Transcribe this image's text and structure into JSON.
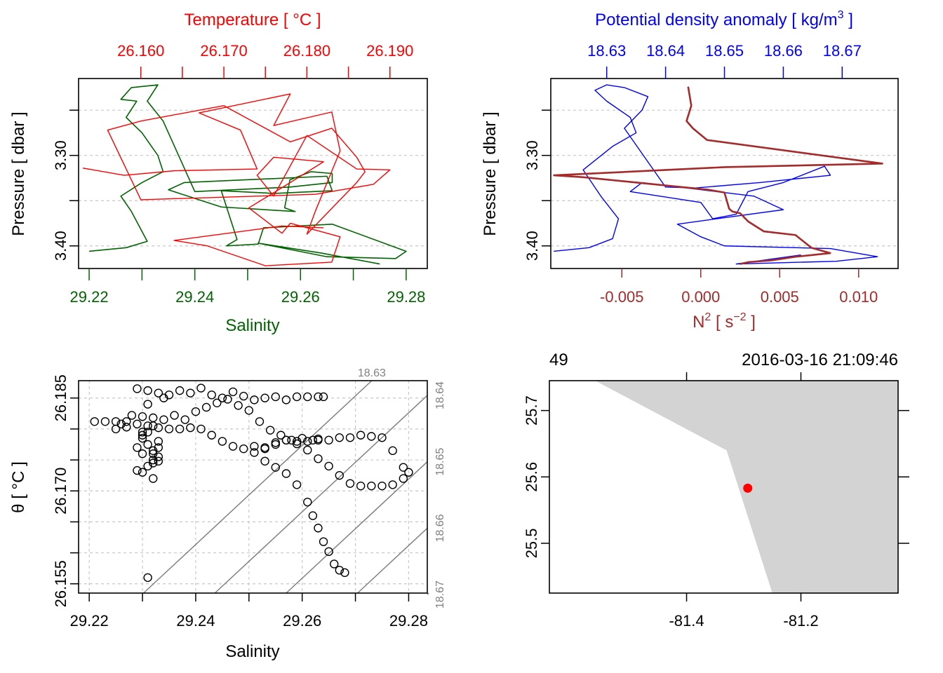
{
  "colors": {
    "salinity": "#006400",
    "temperature": "#ff0000",
    "density": "#0000ff",
    "n2": "#a52a2a",
    "grid": "#c8c8c8",
    "isopycnal": "#808080",
    "land": "#d3d3d3",
    "station": "#ff0000"
  },
  "chart_data": [
    {
      "type": "line",
      "panel": "profile-ts",
      "top_title": "Temperature [ °C ]",
      "xlabel": "Salinity",
      "ylabel": "Pressure [ dbar ]",
      "ylim": [
        3.425,
        3.215
      ],
      "salinity_xlim": [
        29.218,
        29.284
      ],
      "temperature_xlim": [
        26.1525,
        26.1945
      ],
      "salinity_ticks": [
        "29.22",
        "29.24",
        "29.26",
        "29.28"
      ],
      "temperature_ticks": [
        "26.160",
        "26.170",
        "26.180",
        "26.190"
      ],
      "pressure_ticks": [
        "3.30",
        "3.40"
      ],
      "series": [
        {
          "name": "Salinity",
          "x": [
            29.22,
            29.227,
            29.231,
            29.23,
            29.228,
            29.226,
            29.23,
            29.234,
            29.233,
            29.23,
            29.227,
            29.229,
            29.226,
            29.228,
            29.233,
            29.231,
            29.234,
            29.24,
            29.258,
            29.266,
            29.266,
            29.262,
            29.258,
            29.257,
            29.259,
            29.245,
            29.235,
            29.238,
            29.265,
            29.266,
            29.255,
            29.245,
            29.248,
            29.246,
            29.252,
            29.253,
            29.266,
            29.28,
            29.278,
            29.265,
            29.252,
            29.264,
            29.275
          ],
          "y": [
            3.406,
            3.402,
            3.395,
            3.384,
            3.362,
            3.345,
            3.33,
            3.318,
            3.3,
            3.275,
            3.258,
            3.24,
            3.238,
            3.225,
            3.222,
            3.24,
            3.262,
            3.34,
            3.335,
            3.33,
            3.32,
            3.318,
            3.327,
            3.358,
            3.362,
            3.357,
            3.338,
            3.33,
            3.323,
            3.339,
            3.342,
            3.339,
            3.393,
            3.4,
            3.398,
            3.38,
            3.376,
            3.406,
            3.414,
            3.412,
            3.397,
            3.408,
            3.42
          ]
        },
        {
          "name": "Temperature",
          "x": [
            26.153,
            26.158,
            26.164,
            26.174,
            26.172,
            26.167,
            26.178,
            26.176,
            26.183,
            26.184,
            26.181,
            26.18,
            26.186,
            26.187,
            26.186,
            26.183,
            26.178,
            26.17,
            26.16,
            26.156,
            26.16,
            26.181,
            26.188,
            26.19,
            26.186,
            26.18,
            26.176,
            26.174,
            26.176,
            26.182,
            26.178,
            26.173,
            26.177,
            26.178,
            26.184,
            26.183,
            26.175,
            26.168,
            26.164,
            26.177,
            26.182
          ],
          "y": [
            3.314,
            3.322,
            3.317,
            3.315,
            3.272,
            3.253,
            3.232,
            3.267,
            3.252,
            3.295,
            3.362,
            3.387,
            3.33,
            3.318,
            3.302,
            3.27,
            3.285,
            3.245,
            3.262,
            3.272,
            3.349,
            3.343,
            3.332,
            3.316,
            3.315,
            3.278,
            3.345,
            3.322,
            3.302,
            3.307,
            3.33,
            3.358,
            3.386,
            3.375,
            3.39,
            3.418,
            3.422,
            3.4,
            3.394,
            3.378,
            3.38
          ]
        }
      ]
    },
    {
      "type": "line",
      "panel": "profile-density-n2",
      "top_title": "Potential density anomaly [ kg/m",
      "top_title_sup": "3",
      "top_title_end": " ]",
      "xlabel": "N",
      "xlabel_sup": "2",
      "xlabel_unit": " [ s",
      "xlabel_unit_sup": "−2",
      "xlabel_end": " ]",
      "ylabel": "Pressure [ dbar ]",
      "ylim": [
        3.425,
        3.215
      ],
      "density_xlim": [
        18.6205,
        18.6795
      ],
      "n2_xlim": [
        -0.0095,
        0.0125
      ],
      "density_ticks": [
        "18.63",
        "18.64",
        "18.65",
        "18.66",
        "18.67"
      ],
      "n2_ticks": [
        "-0.005",
        "0.000",
        "0.005",
        "0.010"
      ],
      "pressure_ticks": [
        "3.30",
        "3.40"
      ],
      "series": [
        {
          "name": "Potential density anomaly",
          "x": [
            18.621,
            18.627,
            18.631,
            18.632,
            18.629,
            18.626,
            18.631,
            18.635,
            18.634,
            18.63,
            18.628,
            18.63,
            18.633,
            18.637,
            18.636,
            18.633,
            18.64,
            18.645,
            18.656,
            18.668,
            18.667,
            18.66,
            18.654,
            18.652,
            18.648,
            18.646,
            18.634,
            18.636,
            18.655,
            18.66,
            18.642,
            18.646,
            18.65,
            18.668,
            18.676,
            18.669,
            18.652,
            18.663
          ],
          "y": [
            3.406,
            3.402,
            3.392,
            3.37,
            3.345,
            3.316,
            3.29,
            3.275,
            3.258,
            3.24,
            3.228,
            3.222,
            3.225,
            3.235,
            3.25,
            3.27,
            3.335,
            3.336,
            3.33,
            3.322,
            3.312,
            3.33,
            3.34,
            3.365,
            3.37,
            3.352,
            3.34,
            3.33,
            3.345,
            3.36,
            3.376,
            3.39,
            3.4,
            3.403,
            3.412,
            3.417,
            3.42,
            3.41
          ]
        },
        {
          "name": "N2",
          "x": [
            -0.0008,
            -0.0006,
            -0.0009,
            -0.0005,
            0.0004,
            0.0115,
            0.0015,
            -0.0093,
            -0.0075,
            0.0005,
            0.0015,
            0.0018,
            0.002,
            0.0025,
            0.003,
            0.004,
            0.006,
            0.0065,
            0.007,
            0.0082,
            0.006,
            0.0045,
            0.003,
            0.0025
          ],
          "y": [
            3.224,
            3.245,
            3.262,
            3.27,
            3.283,
            3.309,
            3.313,
            3.322,
            3.324,
            3.338,
            3.341,
            3.359,
            3.362,
            3.364,
            3.373,
            3.384,
            3.388,
            3.395,
            3.402,
            3.408,
            3.412,
            3.416,
            3.418,
            3.42
          ]
        }
      ]
    },
    {
      "type": "scatter",
      "panel": "ts-diagram",
      "xlabel": "Salinity",
      "ylabel": "θ [ °C ]",
      "xlim": [
        29.218,
        29.2835
      ],
      "ylim": [
        26.1535,
        26.1878
      ],
      "x_ticks": [
        "29.22",
        "29.24",
        "29.26",
        "29.28"
      ],
      "y_ticks": [
        "26.155",
        "26.170",
        "26.185"
      ],
      "isopycnal_labels": [
        "18.63",
        "18.64",
        "18.65",
        "18.66",
        "18.67"
      ],
      "isopycnal_salinity_bottom": [
        29.2302,
        29.2436,
        29.257,
        29.2704,
        29.2838
      ],
      "isopycnal_slope_dT_dS": 0.8,
      "points_x": [
        29.229,
        29.231,
        29.233,
        29.235,
        29.237,
        29.239,
        29.241,
        29.243,
        29.245,
        29.247,
        29.249,
        29.251,
        29.253,
        29.255,
        29.257,
        29.259,
        29.261,
        29.263,
        29.264,
        29.23,
        29.232,
        29.234,
        29.236,
        29.238,
        29.24,
        29.242,
        29.244,
        29.246,
        29.248,
        29.25,
        29.252,
        29.254,
        29.256,
        29.258,
        29.26,
        29.262,
        29.263,
        29.221,
        29.223,
        29.225,
        29.227,
        29.229,
        29.231,
        29.233,
        29.235,
        29.237,
        29.239,
        29.241,
        29.243,
        29.245,
        29.247,
        29.249,
        29.251,
        29.253,
        29.255,
        29.257,
        29.259,
        29.261,
        29.263,
        29.265,
        29.267,
        29.269,
        29.271,
        29.273,
        29.275,
        29.277,
        29.279,
        29.28,
        29.279,
        29.277,
        29.275,
        29.273,
        29.271,
        29.269,
        29.267,
        29.265,
        29.263,
        29.261,
        29.259,
        29.257,
        29.255,
        29.253,
        29.251,
        29.253,
        29.255,
        29.257,
        29.259,
        29.261,
        29.262,
        29.263,
        29.264,
        29.265,
        29.266,
        29.267,
        29.268,
        29.231,
        29.232,
        29.233,
        29.232,
        29.231,
        29.23,
        29.231,
        29.232,
        29.233,
        29.231,
        29.23,
        29.232,
        29.229,
        29.233,
        29.23,
        29.232,
        29.228,
        29.226,
        29.227,
        29.225,
        29.23,
        29.234,
        29.231,
        29.233,
        29.229,
        29.232,
        29.23
      ],
      "points_y": [
        26.1865,
        26.1862,
        26.1858,
        26.1855,
        26.1862,
        26.1858,
        26.1866,
        26.1855,
        26.185,
        26.186,
        26.1853,
        26.1847,
        26.185,
        26.1852,
        26.1847,
        26.1852,
        26.1852,
        26.1852,
        26.1852,
        26.182,
        26.1818,
        26.1815,
        26.1822,
        26.1815,
        26.1828,
        26.1835,
        26.1842,
        26.1848,
        26.1838,
        26.183,
        26.1812,
        26.1798,
        26.179,
        26.1782,
        26.1785,
        26.1782,
        26.1784,
        26.1812,
        26.1812,
        26.1812,
        26.1812,
        26.1808,
        26.1805,
        26.1802,
        26.18,
        26.18,
        26.1802,
        26.18,
        26.179,
        26.178,
        26.1772,
        26.1768,
        26.1772,
        26.177,
        26.1775,
        26.1782,
        26.178,
        26.178,
        26.1782,
        26.1782,
        26.1786,
        26.1786,
        26.179,
        26.1788,
        26.1786,
        26.1765,
        26.1738,
        26.173,
        26.172,
        26.171,
        26.1708,
        26.1708,
        26.1708,
        26.1712,
        26.1725,
        26.174,
        26.1752,
        26.1766,
        26.1776,
        26.1782,
        26.1778,
        26.1768,
        26.1762,
        26.1748,
        26.1738,
        26.1728,
        26.171,
        26.1682,
        26.166,
        26.164,
        26.1618,
        26.1602,
        26.1582,
        26.1572,
        26.1568,
        26.156,
        26.1745,
        26.1755,
        26.1765,
        26.1775,
        26.1785,
        26.1795,
        26.176,
        26.1748,
        26.174,
        26.173,
        26.172,
        26.1733,
        26.177,
        26.179,
        26.1805,
        26.1822,
        26.1808,
        26.1803,
        26.18,
        26.1795,
        26.185,
        26.184,
        26.178,
        26.177,
        26.175,
        26.176,
        26.1735
      ]
    },
    {
      "type": "scatter",
      "panel": "station-map",
      "top_left_label": "49",
      "top_right_label": "2016-03-16 21:09:46",
      "xlim": [
        -81.64,
        -81.03
      ],
      "ylim": [
        25.425,
        25.745
      ],
      "x_ticks": [
        "-81.4",
        "-81.2"
      ],
      "y_ticks": [
        "25.5",
        "25.6",
        "25.7"
      ],
      "coastline_lon": [
        -81.56,
        -81.33,
        -81.25,
        -81.03,
        -81.03
      ],
      "coastline_lat": [
        25.745,
        25.64,
        25.425,
        25.425,
        25.745
      ],
      "station_lon": [
        -81.293
      ],
      "station_lat": [
        25.583
      ]
    }
  ]
}
